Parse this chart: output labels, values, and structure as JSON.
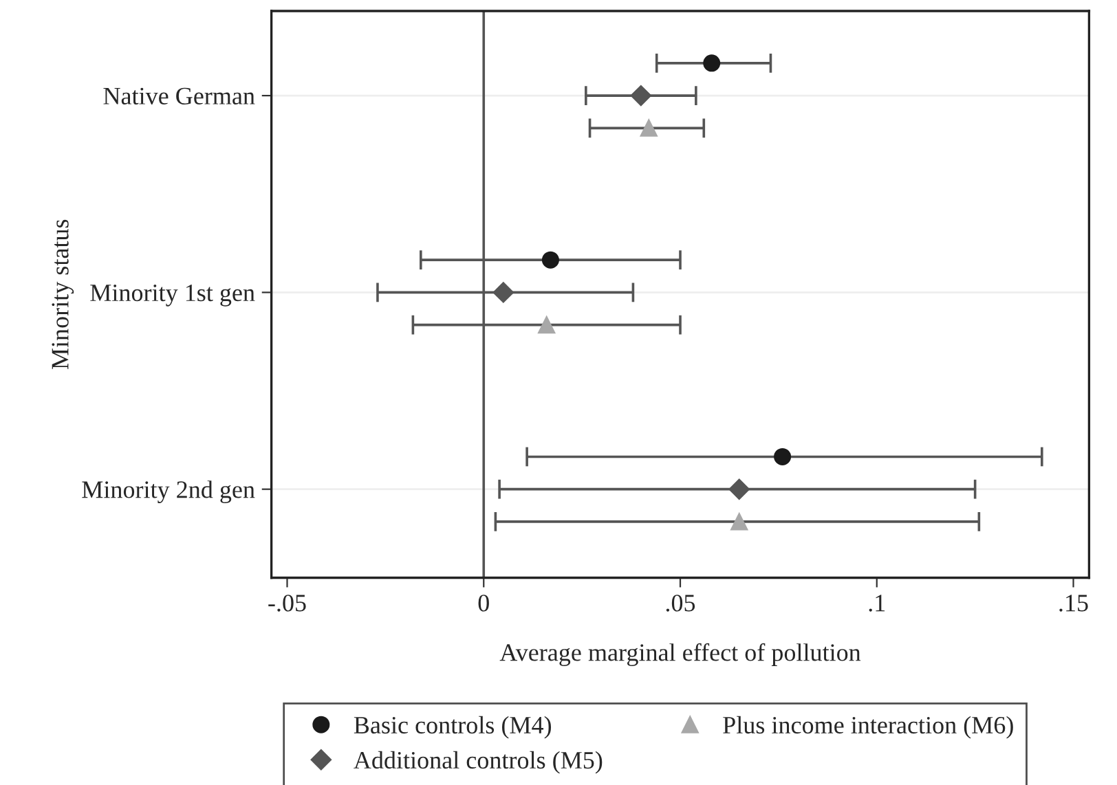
{
  "chart_data": {
    "type": "scatter",
    "orientation": "horizontal",
    "categories": [
      "Native German",
      "Minority 1st gen",
      "Minority 2nd gen"
    ],
    "xlabel": "Average marginal effect of pollution",
    "ylabel": "Minority status",
    "xlim": [
      -0.054,
      0.154
    ],
    "xticks": [
      {
        "value": -0.05,
        "label": "-.05"
      },
      0,
      {
        "value": 0.05,
        "label": ".05"
      },
      {
        "value": 0.1,
        "label": ".1"
      },
      {
        "value": 0.15,
        "label": ".15"
      }
    ],
    "series": [
      {
        "name": "Basic controls (M4)",
        "color": "#1a1a1a",
        "marker": "circle",
        "values": [
          0.058,
          0.017,
          0.076
        ],
        "errors": [
          [
            0.044,
            0.073
          ],
          [
            -0.016,
            0.05
          ],
          [
            0.011,
            0.142
          ]
        ]
      },
      {
        "name": "Additional controls (M5)",
        "color": "#555555",
        "marker": "diamond",
        "values": [
          0.04,
          0.005,
          0.065
        ],
        "errors": [
          [
            0.026,
            0.054
          ],
          [
            -0.027,
            0.038
          ],
          [
            0.004,
            0.125
          ]
        ]
      },
      {
        "name": "Plus income interaction (M6)",
        "color": "#a8a8a8",
        "marker": "triangle",
        "values": [
          0.042,
          0.016,
          0.065
        ],
        "errors": [
          [
            0.027,
            0.056
          ],
          [
            -0.018,
            0.05
          ],
          [
            0.003,
            0.126
          ]
        ]
      }
    ],
    "ref_lines": [
      {
        "axis": "x",
        "value": 0,
        "label": null,
        "color": "#555555"
      }
    ],
    "grid": "y",
    "legend": "bottom"
  }
}
